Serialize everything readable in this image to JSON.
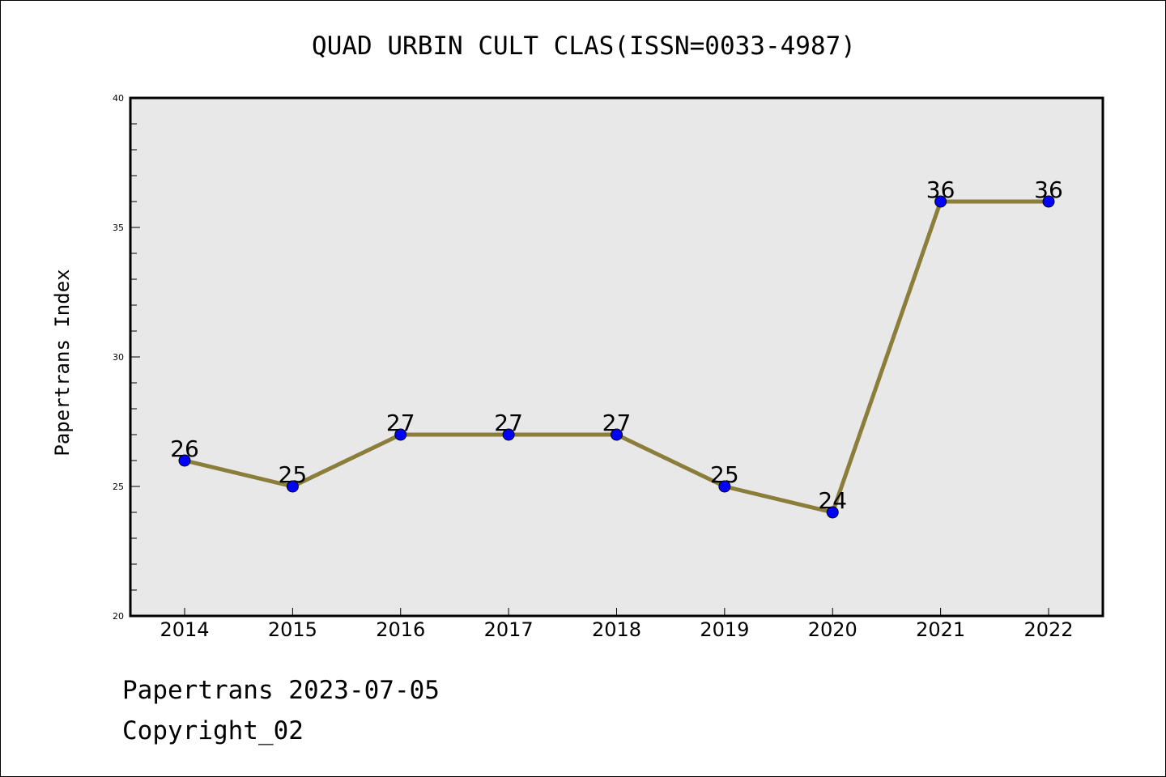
{
  "chart_data": {
    "type": "line",
    "title": "QUAD URBIN CULT CLAS(ISSN=0033-4987)",
    "xlabel": "",
    "ylabel": "Papertrans Index",
    "categories": [
      "2014",
      "2015",
      "2016",
      "2017",
      "2018",
      "2019",
      "2020",
      "2021",
      "2022"
    ],
    "series": [
      {
        "values": [
          26,
          25,
          27,
          27,
          27,
          25,
          24,
          36,
          36
        ]
      }
    ],
    "ylim": [
      20,
      40
    ],
    "yticks": [
      20,
      25,
      30,
      35,
      40
    ],
    "yticks_minor_step": 1,
    "grid": false,
    "legend": "none",
    "data_labels": true,
    "colors": {
      "line": "#8b7d3a",
      "marker": "#0000ff",
      "plot_background": "#e8e8e8"
    }
  },
  "footer": {
    "line1": "Papertrans 2023-07-05",
    "line2": "Copyright_02"
  }
}
